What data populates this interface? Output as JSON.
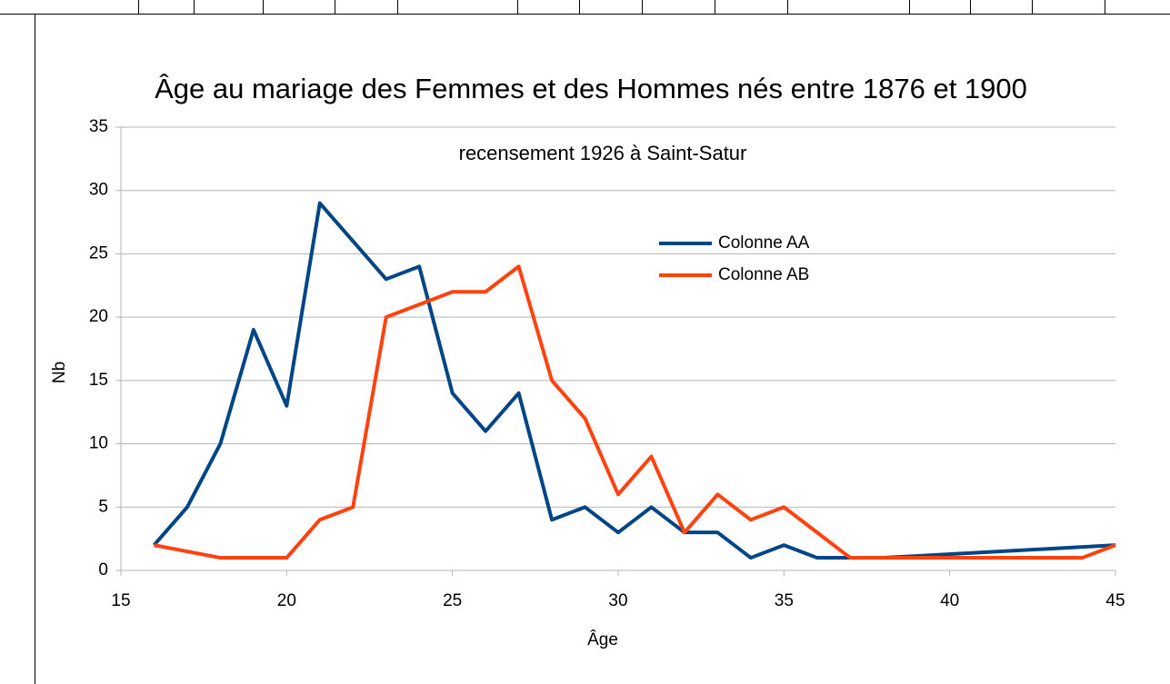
{
  "chart_data": {
    "type": "line",
    "title": "Âge au mariage des Femmes et des Hommes nés entre 1876 et 1900",
    "subtitle": "recensement 1926 à Saint-Satur",
    "x_label": "Âge",
    "y_label": "Nb",
    "xlim": [
      15,
      45
    ],
    "xticks": [
      15,
      20,
      25,
      30,
      35,
      40,
      45
    ],
    "ylim": [
      0,
      35
    ],
    "yticks": [
      0,
      5,
      10,
      15,
      20,
      25,
      30,
      35
    ],
    "grid": true,
    "legend": "upper right",
    "series": [
      {
        "name": "Colonne AA",
        "color": "#004586",
        "x": [
          16,
          17,
          18,
          19,
          20,
          21,
          22,
          23,
          24,
          25,
          26,
          27,
          28,
          29,
          30,
          31,
          32,
          33,
          34,
          35,
          36,
          37,
          38,
          45
        ],
        "values": [
          2,
          5,
          10,
          19,
          13,
          29,
          26,
          23,
          24,
          14,
          11,
          14,
          4,
          5,
          3,
          5,
          3,
          3,
          1,
          2,
          1,
          1,
          1,
          2
        ]
      },
      {
        "name": "Colonne AB",
        "color": "#ff420e",
        "x": [
          16,
          18,
          19,
          20,
          21,
          22,
          23,
          24,
          25,
          26,
          27,
          28,
          29,
          30,
          31,
          32,
          33,
          34,
          35,
          37,
          44,
          45
        ],
        "values": [
          2,
          1,
          1,
          1,
          4,
          5,
          20,
          21,
          22,
          22,
          24,
          15,
          12,
          6,
          9,
          3,
          6,
          4,
          5,
          1,
          1,
          2
        ]
      }
    ]
  }
}
